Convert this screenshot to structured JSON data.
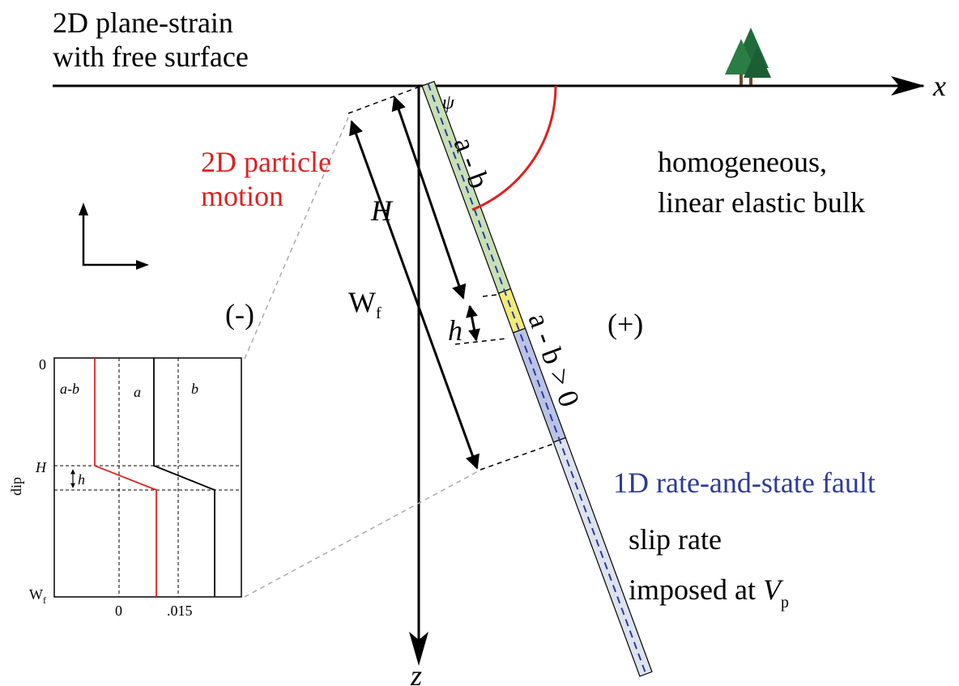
{
  "header": {
    "lines": [
      "2D plane-strain",
      "with free surface"
    ]
  },
  "axes": {
    "x": "x",
    "z": "z"
  },
  "motion": {
    "lines": [
      "2D particle",
      "motion"
    ]
  },
  "bulk": {
    "lines": [
      "homogeneous,",
      "linear elastic bulk"
    ]
  },
  "fault": {
    "angle": "ψ",
    "upper": "a - b",
    "lower": "a - b > 0",
    "title": "1D rate-and-state fault",
    "H": "H",
    "W": "W",
    "W_sub": "f",
    "h": "h",
    "minus": "(-)",
    "plus": "(+)"
  },
  "loading": {
    "line1": "slip rate",
    "line2": "imposed at ",
    "V": "V",
    "V_sub": "p"
  },
  "inset": {
    "y_top": "0",
    "ab": "a-b",
    "a": "a",
    "b": "b",
    "dip": "dip",
    "H": "H",
    "h": "h",
    "W": "W",
    "W_sub": "f",
    "x_zero": "0",
    "x_max": ".015"
  }
}
